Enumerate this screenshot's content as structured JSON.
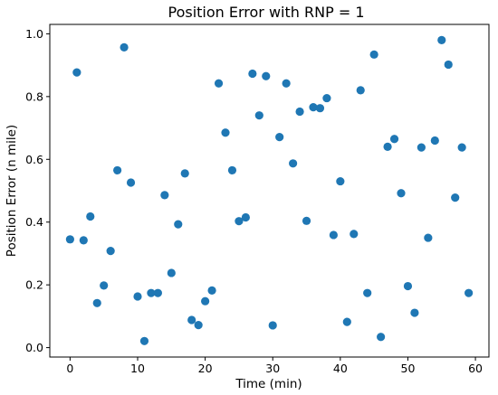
{
  "chart_data": {
    "type": "scatter",
    "title": "Position Error with RNP = 1",
    "xlabel": "Time (min)",
    "ylabel": "Position Error (n mile)",
    "xlim": [
      -3,
      62
    ],
    "ylim": [
      -0.03,
      1.03
    ],
    "xticks": [
      0,
      10,
      20,
      30,
      40,
      50,
      60
    ],
    "yticks": [
      0.0,
      0.2,
      0.4,
      0.6,
      0.8,
      1.0
    ],
    "xtick_labels": [
      "0",
      "10",
      "20",
      "30",
      "40",
      "50",
      "60"
    ],
    "ytick_labels": [
      "0.0",
      "0.2",
      "0.4",
      "0.6",
      "0.8",
      "1.0"
    ],
    "grid": false,
    "marker_color": "#1f77b4",
    "x": [
      0,
      1,
      2,
      3,
      4,
      5,
      6,
      7,
      8,
      9,
      10,
      11,
      12,
      13,
      14,
      15,
      16,
      17,
      18,
      19,
      20,
      21,
      22,
      23,
      24,
      25,
      26,
      27,
      28,
      29,
      30,
      31,
      32,
      33,
      34,
      35,
      36,
      37,
      38,
      39,
      40,
      41,
      42,
      43,
      44,
      45,
      46,
      47,
      48,
      49,
      50,
      51,
      52,
      53,
      54,
      55,
      56,
      57,
      58,
      59
    ],
    "y": [
      0.345,
      0.877,
      0.342,
      0.418,
      0.142,
      0.198,
      0.308,
      0.565,
      0.957,
      0.526,
      0.163,
      0.021,
      0.174,
      0.174,
      0.486,
      0.238,
      0.393,
      0.555,
      0.088,
      0.072,
      0.148,
      0.182,
      0.842,
      0.685,
      0.565,
      0.403,
      0.415,
      0.873,
      0.74,
      0.865,
      0.071,
      0.671,
      0.842,
      0.587,
      0.752,
      0.404,
      0.766,
      0.763,
      0.795,
      0.359,
      0.53,
      0.082,
      0.362,
      0.82,
      0.174,
      0.934,
      0.034,
      0.64,
      0.665,
      0.492,
      0.196,
      0.111,
      0.638,
      0.35,
      0.66,
      0.98,
      0.902,
      0.478,
      0.638,
      0.174
    ]
  }
}
